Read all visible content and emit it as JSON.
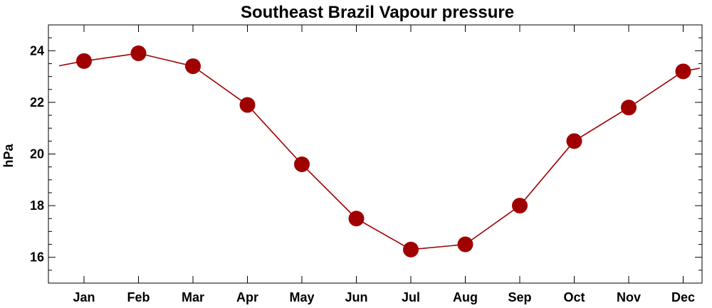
{
  "chart_data": {
    "type": "line",
    "title": "Southeast Brazil Vapour pressure",
    "xlabel": "",
    "ylabel": "hPa",
    "categories": [
      "Jan",
      "Feb",
      "Mar",
      "Apr",
      "May",
      "Jun",
      "Jul",
      "Aug",
      "Sep",
      "Oct",
      "Nov",
      "Dec"
    ],
    "series": [
      {
        "values": [
          23.6,
          23.9,
          23.4,
          21.9,
          19.6,
          17.5,
          16.3,
          16.5,
          18.0,
          20.5,
          21.8,
          23.2
        ]
      }
    ],
    "ylim": [
      15,
      25
    ],
    "yticks": [
      16,
      18,
      20,
      22,
      24
    ],
    "grid": false,
    "cyclic": true,
    "colors": {
      "line": "#a00000",
      "marker": "#a00000",
      "axes": "#000000"
    }
  }
}
